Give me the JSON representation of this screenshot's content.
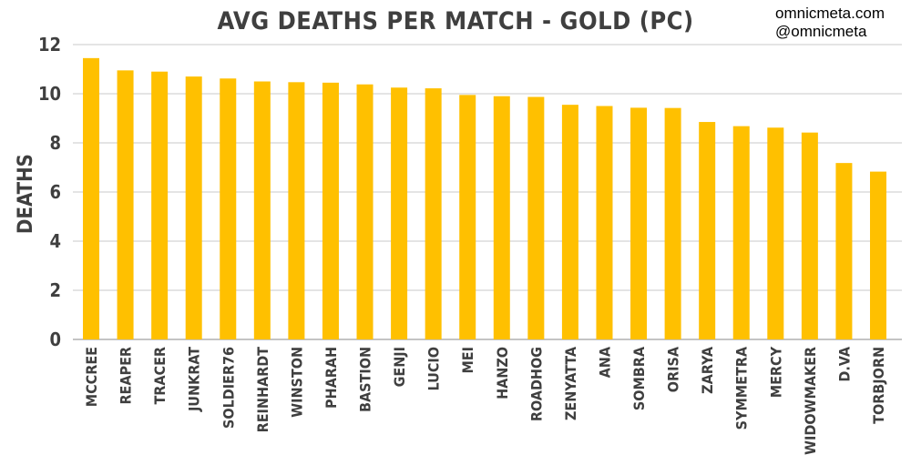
{
  "brand": {
    "site": "omnicmeta.com",
    "handle": "@omnicmeta"
  },
  "colors": {
    "bar": "#FFC000",
    "text": "#3f3f3f",
    "grid": "#c8c8c8"
  },
  "chart_data": {
    "type": "bar",
    "title": "AVG DEATHS PER MATCH - GOLD (PC)",
    "xlabel": "",
    "ylabel": "DEATHS",
    "ylim": [
      0,
      12
    ],
    "yticks": [
      0,
      2,
      4,
      6,
      8,
      10,
      12
    ],
    "grid": true,
    "legend": "none",
    "categories": [
      "MCCREE",
      "REAPER",
      "TRACER",
      "JUNKRAT",
      "SOLDIER76",
      "REINHARDT",
      "WINSTON",
      "PHARAH",
      "BASTION",
      "GENJI",
      "LUCIO",
      "MEI",
      "HANZO",
      "ROADHOG",
      "ZENYATTA",
      "ANA",
      "SOMBRA",
      "ORISA",
      "ZARYA",
      "SYMMETRA",
      "MERCY",
      "WIDOWMAKER",
      "D.VA",
      "TORBJORN"
    ],
    "values": [
      11.45,
      10.95,
      10.9,
      10.7,
      10.62,
      10.5,
      10.47,
      10.45,
      10.38,
      10.25,
      10.22,
      9.95,
      9.9,
      9.87,
      9.55,
      9.5,
      9.43,
      9.42,
      8.85,
      8.68,
      8.62,
      8.42,
      7.18,
      6.83
    ]
  }
}
